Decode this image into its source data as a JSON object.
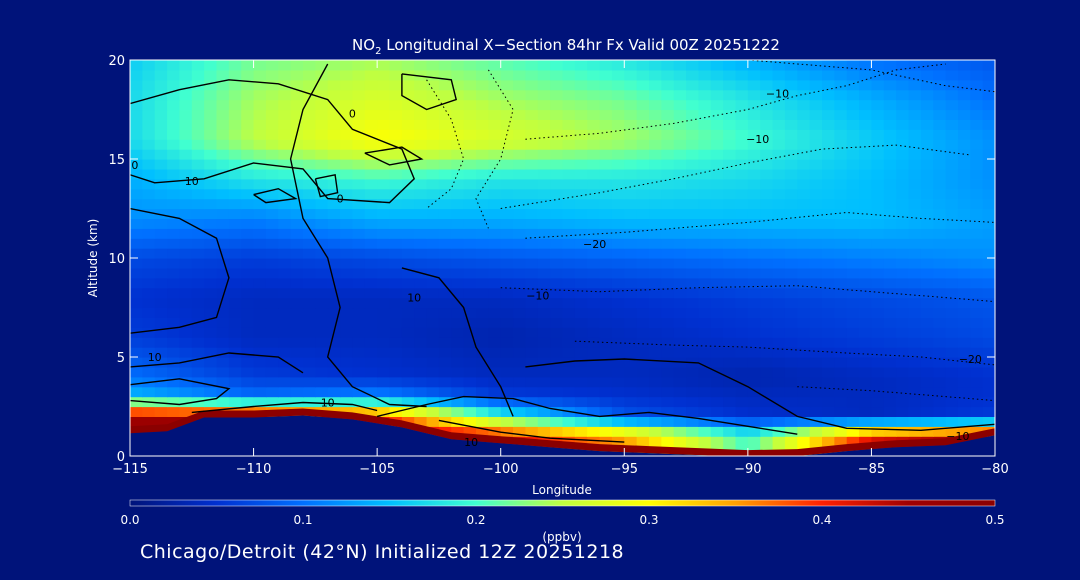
{
  "chart_data": {
    "type": "heatmap",
    "title_prefix": "NO",
    "title_subscript": "2",
    "title_rest": " Longitudinal X−Section 84hr  Fx Valid 00Z 20251222",
    "xlabel": "Longitude",
    "ylabel": "Altitude (km)",
    "xlim": [
      -115,
      -80
    ],
    "ylim": [
      0,
      20
    ],
    "x_ticks": [
      -115,
      -110,
      -105,
      -100,
      -95,
      -90,
      -85,
      -80
    ],
    "x_tick_labels": [
      "−115",
      "−110",
      "−105",
      "−100",
      "−95",
      "−90",
      "−85",
      "−80"
    ],
    "y_ticks": [
      0,
      5,
      10,
      15,
      20
    ],
    "y_tick_labels": [
      "0",
      "5",
      "10",
      "15",
      "20"
    ],
    "colorbar": {
      "min": 0.0,
      "max": 0.5,
      "units": "(ppbv)",
      "ticks": [
        0.0,
        0.1,
        0.2,
        0.3,
        0.4,
        0.5
      ],
      "tick_labels": [
        "0.0",
        "0.1",
        "0.2",
        "0.3",
        "0.4",
        "0.5"
      ],
      "colors": [
        "#00137a",
        "#0030d0",
        "#0070ff",
        "#00bfff",
        "#40ffd0",
        "#c0ff40",
        "#ffff00",
        "#ffa000",
        "#ff2000",
        "#a00000",
        "#8b0000"
      ]
    },
    "field_grid": {
      "lon": [
        -115,
        -110,
        -105,
        -100,
        -95,
        -90,
        -85,
        -80
      ],
      "alt": [
        1,
        2,
        3,
        4,
        6,
        8,
        10,
        12,
        14,
        16,
        18,
        20
      ],
      "values": [
        [
          0.46,
          0.47,
          0.45,
          0.42,
          0.35,
          0.2,
          0.42,
          0.46
        ],
        [
          0.46,
          0.45,
          0.4,
          0.2,
          0.08,
          0.05,
          0.04,
          0.06
        ],
        [
          0.15,
          0.1,
          0.12,
          0.06,
          0.05,
          0.04,
          0.04,
          0.05
        ],
        [
          0.1,
          0.06,
          0.05,
          0.04,
          0.04,
          0.03,
          0.04,
          0.05
        ],
        [
          0.06,
          0.04,
          0.04,
          0.03,
          0.04,
          0.05,
          0.06,
          0.07
        ],
        [
          0.05,
          0.04,
          0.04,
          0.04,
          0.05,
          0.06,
          0.07,
          0.08
        ],
        [
          0.07,
          0.06,
          0.07,
          0.08,
          0.09,
          0.1,
          0.11,
          0.12
        ],
        [
          0.12,
          0.11,
          0.14,
          0.14,
          0.15,
          0.15,
          0.15,
          0.13
        ],
        [
          0.14,
          0.18,
          0.2,
          0.18,
          0.18,
          0.17,
          0.15,
          0.12
        ],
        [
          0.17,
          0.25,
          0.3,
          0.27,
          0.24,
          0.2,
          0.16,
          0.12
        ],
        [
          0.17,
          0.24,
          0.27,
          0.24,
          0.22,
          0.18,
          0.14,
          0.1
        ],
        [
          0.16,
          0.22,
          0.24,
          0.21,
          0.18,
          0.14,
          0.1,
          0.08
        ]
      ]
    },
    "terrain": [
      [
        -115,
        1.5
      ],
      [
        -113.5,
        1.6
      ],
      [
        -112,
        2.3
      ],
      [
        -110,
        2.3
      ],
      [
        -108,
        2.4
      ],
      [
        -106,
        2.2
      ],
      [
        -104,
        1.8
      ],
      [
        -102,
        1.2
      ],
      [
        -100,
        1.0
      ],
      [
        -98,
        0.8
      ],
      [
        -96,
        0.6
      ],
      [
        -94,
        0.5
      ],
      [
        -92,
        0.4
      ],
      [
        -90,
        0.3
      ],
      [
        -88,
        0.35
      ],
      [
        -86,
        0.6
      ],
      [
        -84,
        0.8
      ],
      [
        -82,
        0.9
      ],
      [
        -80,
        1.4
      ]
    ],
    "contour_labels": [
      {
        "text": "0",
        "lon": -114.8,
        "alt": 14.7
      },
      {
        "text": "10",
        "lon": -112.5,
        "alt": 13.9
      },
      {
        "text": "0",
        "lon": -106,
        "alt": 17.3
      },
      {
        "text": "0",
        "lon": -106.5,
        "alt": 13.0
      },
      {
        "text": "10",
        "lon": -114,
        "alt": 5.0
      },
      {
        "text": "10",
        "lon": -107,
        "alt": 2.7
      },
      {
        "text": "10",
        "lon": -103.5,
        "alt": 8.0
      },
      {
        "text": "10",
        "lon": -101.2,
        "alt": 0.7
      },
      {
        "text": "−10",
        "lon": -88.8,
        "alt": 18.3
      },
      {
        "text": "−10",
        "lon": -89.6,
        "alt": 16.0
      },
      {
        "text": "−20",
        "lon": -96.2,
        "alt": 10.7
      },
      {
        "text": "−10",
        "lon": -98.5,
        "alt": 8.1
      },
      {
        "text": "−20",
        "lon": -81.0,
        "alt": 4.9
      },
      {
        "text": "−10",
        "lon": -81.5,
        "alt": 1.0
      }
    ]
  },
  "footer_text": "Chicago/Detroit (42°N) Initialized 12Z 20251218"
}
